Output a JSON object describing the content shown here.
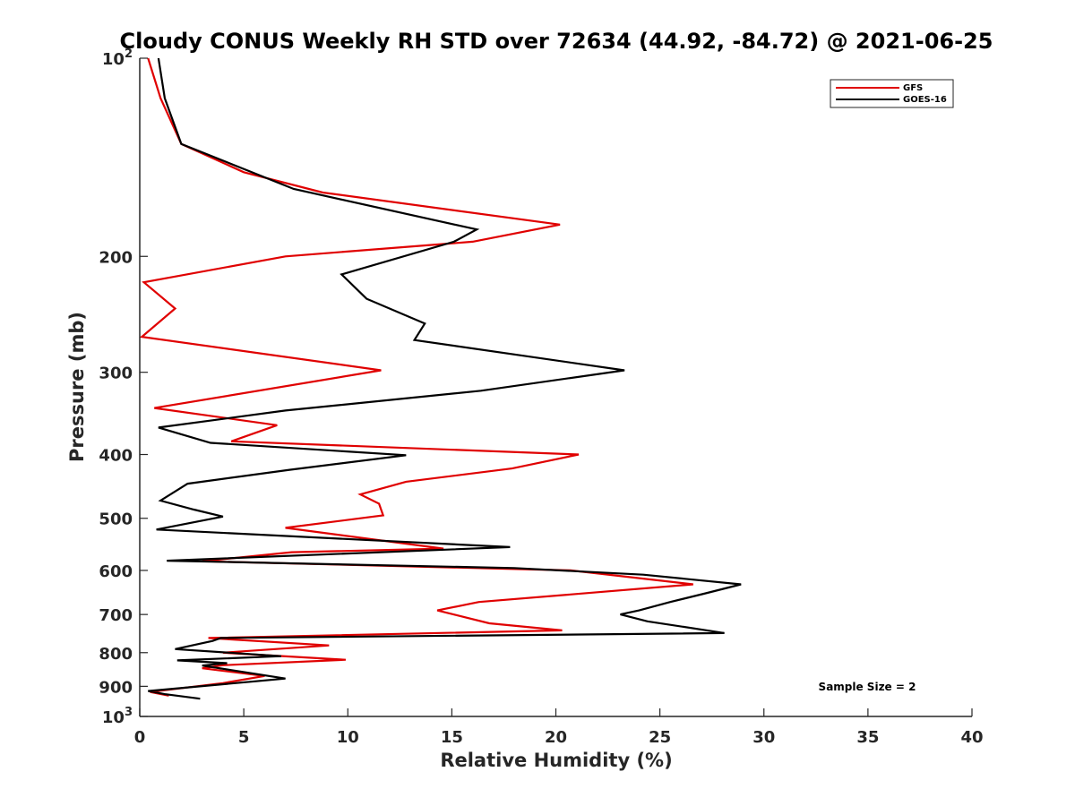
{
  "chart_data": {
    "type": "line",
    "title": "Cloudy CONUS Weekly RH STD over 72634 (44.92, -84.72) @ 2021-06-25",
    "xlabel": "Relative Humidity (%)",
    "ylabel": "Pressure (mb)",
    "xlim": [
      0,
      40
    ],
    "ylim": [
      100,
      1000
    ],
    "y_scale": "log",
    "y_reversed": true,
    "x_ticks": [
      "0",
      "5",
      "10",
      "15",
      "20",
      "25",
      "30",
      "35",
      "40"
    ],
    "y_ticks": [
      {
        "value": 100,
        "label": "10",
        "sup": "2"
      },
      {
        "value": 200,
        "label": "200",
        "sup": ""
      },
      {
        "value": 300,
        "label": "300",
        "sup": ""
      },
      {
        "value": 400,
        "label": "400",
        "sup": ""
      },
      {
        "value": 500,
        "label": "500",
        "sup": ""
      },
      {
        "value": 600,
        "label": "600",
        "sup": ""
      },
      {
        "value": 700,
        "label": "700",
        "sup": ""
      },
      {
        "value": 800,
        "label": "800",
        "sup": ""
      },
      {
        "value": 900,
        "label": "900",
        "sup": ""
      },
      {
        "value": 1000,
        "label": "10",
        "sup": "3"
      }
    ],
    "grid": false,
    "legend_position": "top-right",
    "annotation": "Sample Size = 2",
    "series": [
      {
        "name": "GFS",
        "color": "#e00000",
        "points": [
          [
            0.4,
            100
          ],
          [
            1.0,
            115
          ],
          [
            2.0,
            135
          ],
          [
            5.0,
            149
          ],
          [
            8.8,
            160
          ],
          [
            20.2,
            179
          ],
          [
            16.0,
            190
          ],
          [
            7.0,
            200
          ],
          [
            0.2,
            219
          ],
          [
            1.7,
            240
          ],
          [
            0.1,
            265
          ],
          [
            11.6,
            298
          ],
          [
            0.7,
            340
          ],
          [
            6.6,
            361
          ],
          [
            4.4,
            382
          ],
          [
            21.1,
            400
          ],
          [
            17.9,
            420
          ],
          [
            12.8,
            440
          ],
          [
            10.6,
            460
          ],
          [
            11.5,
            475
          ],
          [
            11.7,
            495
          ],
          [
            7.0,
            517
          ],
          [
            14.6,
            556
          ],
          [
            7.3,
            563
          ],
          [
            3.0,
            581
          ],
          [
            20.7,
            600
          ],
          [
            26.6,
            630
          ],
          [
            16.3,
            670
          ],
          [
            14.3,
            690
          ],
          [
            16.8,
            722
          ],
          [
            20.3,
            740
          ],
          [
            3.3,
            760
          ],
          [
            9.1,
            780
          ],
          [
            4.0,
            800
          ],
          [
            9.9,
            820
          ],
          [
            4.0,
            836
          ],
          [
            3.0,
            845
          ],
          [
            6.0,
            868
          ],
          [
            4.0,
            890
          ],
          [
            0.5,
            918
          ],
          [
            1.4,
            930
          ]
        ]
      },
      {
        "name": "GOES-16",
        "color": "#000000",
        "points": [
          [
            0.9,
            100
          ],
          [
            1.2,
            115
          ],
          [
            2.0,
            135
          ],
          [
            7.4,
            158
          ],
          [
            16.2,
            182
          ],
          [
            15.1,
            190
          ],
          [
            9.7,
            213
          ],
          [
            10.9,
            232
          ],
          [
            13.7,
            253
          ],
          [
            13.2,
            268
          ],
          [
            23.3,
            298
          ],
          [
            16.4,
            320
          ],
          [
            7.0,
            343
          ],
          [
            0.9,
            364
          ],
          [
            3.4,
            384
          ],
          [
            12.8,
            401
          ],
          [
            7.2,
            422
          ],
          [
            2.3,
            443
          ],
          [
            1.0,
            470
          ],
          [
            2.6,
            485
          ],
          [
            4.0,
            497
          ],
          [
            0.8,
            520
          ],
          [
            17.8,
            553
          ],
          [
            1.3,
            580
          ],
          [
            18.0,
            595
          ],
          [
            24.2,
            609
          ],
          [
            28.9,
            630
          ],
          [
            27.2,
            650
          ],
          [
            25.5,
            670
          ],
          [
            24.0,
            690
          ],
          [
            23.1,
            700
          ],
          [
            24.4,
            717
          ],
          [
            28.1,
            747
          ],
          [
            3.9,
            760
          ],
          [
            3.5,
            768
          ],
          [
            1.7,
            790
          ],
          [
            6.8,
            810
          ],
          [
            1.8,
            822
          ],
          [
            4.2,
            830
          ],
          [
            3.0,
            837
          ],
          [
            7.0,
            876
          ],
          [
            0.4,
            915
          ],
          [
            1.2,
            925
          ],
          [
            2.9,
            940
          ]
        ]
      }
    ]
  }
}
